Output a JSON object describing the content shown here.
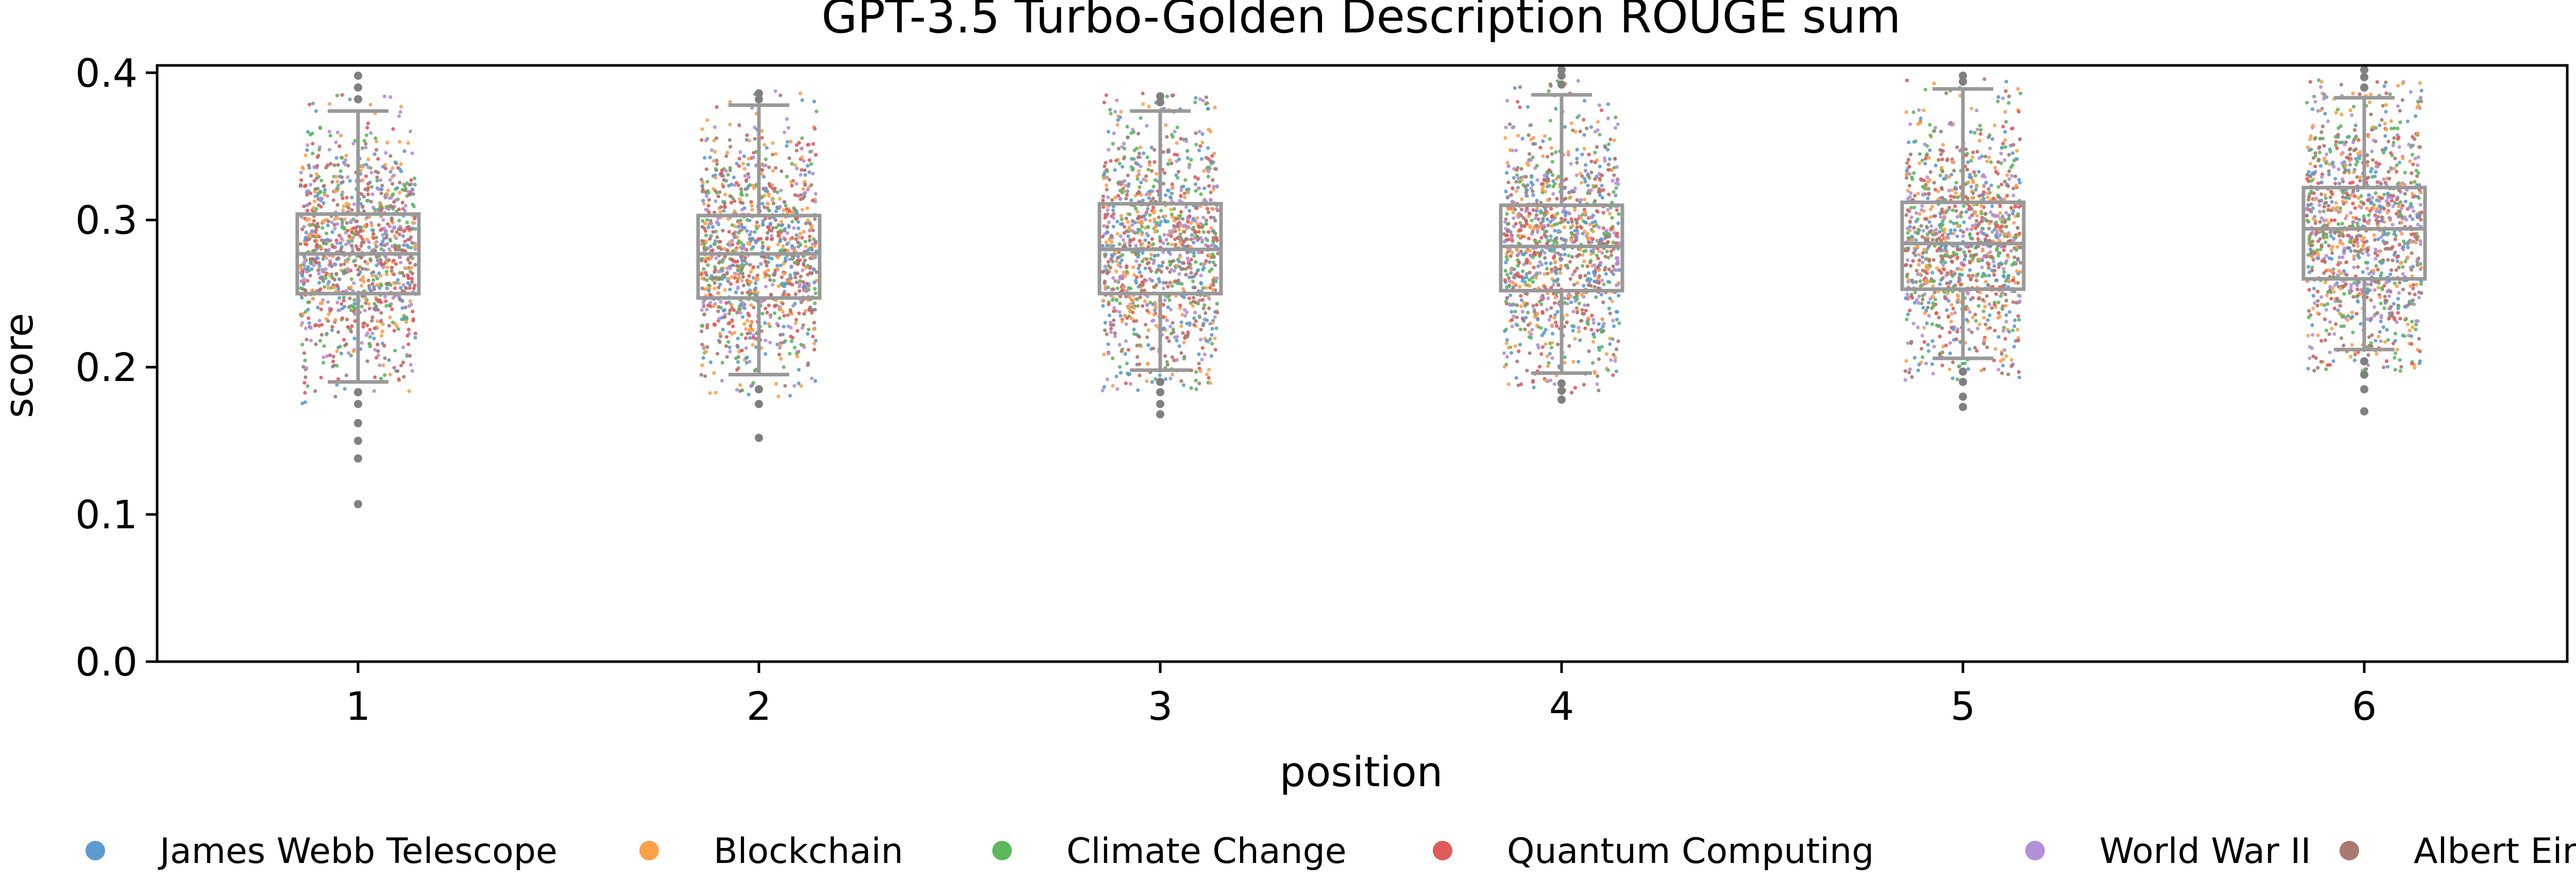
{
  "chart_data": {
    "type": "box+strip",
    "title": "GPT-3.5 Turbo-Golden Description ROUGE sum",
    "xlabel": "position",
    "ylabel": "score",
    "ylim": [
      0.0,
      0.405
    ],
    "yticks": [
      0.0,
      0.1,
      0.2,
      0.3,
      0.4
    ],
    "ytick_labels": [
      "0.0",
      "0.1",
      "0.2",
      "0.3",
      "0.4"
    ],
    "categories": [
      "1",
      "2",
      "3",
      "4",
      "5",
      "6"
    ],
    "grid": false,
    "legend_position": "bottom",
    "box_color": "#999999",
    "boxes": [
      {
        "category": "1",
        "whisker_low": 0.19,
        "q1": 0.25,
        "median": 0.277,
        "q3": 0.304,
        "whisker_high": 0.374,
        "outliers": [
          0.183,
          0.175,
          0.162,
          0.15,
          0.138,
          0.107,
          0.382,
          0.39,
          0.398
        ]
      },
      {
        "category": "2",
        "whisker_low": 0.195,
        "q1": 0.247,
        "median": 0.277,
        "q3": 0.303,
        "whisker_high": 0.378,
        "outliers": [
          0.185,
          0.175,
          0.152,
          0.382,
          0.386
        ]
      },
      {
        "category": "3",
        "whisker_low": 0.198,
        "q1": 0.25,
        "median": 0.28,
        "q3": 0.311,
        "whisker_high": 0.374,
        "outliers": [
          0.19,
          0.183,
          0.175,
          0.168,
          0.38,
          0.384
        ]
      },
      {
        "category": "4",
        "whisker_low": 0.196,
        "q1": 0.252,
        "median": 0.282,
        "q3": 0.31,
        "whisker_high": 0.385,
        "outliers": [
          0.189,
          0.184,
          0.178,
          0.392,
          0.398,
          0.402
        ]
      },
      {
        "category": "5",
        "whisker_low": 0.206,
        "q1": 0.253,
        "median": 0.284,
        "q3": 0.312,
        "whisker_high": 0.389,
        "outliers": [
          0.197,
          0.19,
          0.18,
          0.173,
          0.394,
          0.398
        ]
      },
      {
        "category": "6",
        "whisker_low": 0.212,
        "q1": 0.26,
        "median": 0.294,
        "q3": 0.322,
        "whisker_high": 0.383,
        "outliers": [
          0.204,
          0.195,
          0.185,
          0.17,
          0.39,
          0.397,
          0.402
        ]
      }
    ],
    "series": [
      {
        "name": "James Webb Telescope",
        "color": "#5b9bd0"
      },
      {
        "name": "Blockchain",
        "color": "#ff9f4a"
      },
      {
        "name": "Climate Change",
        "color": "#5cb85c"
      },
      {
        "name": "Quantum Computing",
        "color": "#e05a5a"
      },
      {
        "name": "World War II",
        "color": "#b28fd6"
      },
      {
        "name": "Albert Einstein",
        "color": "#a9786f"
      }
    ]
  }
}
